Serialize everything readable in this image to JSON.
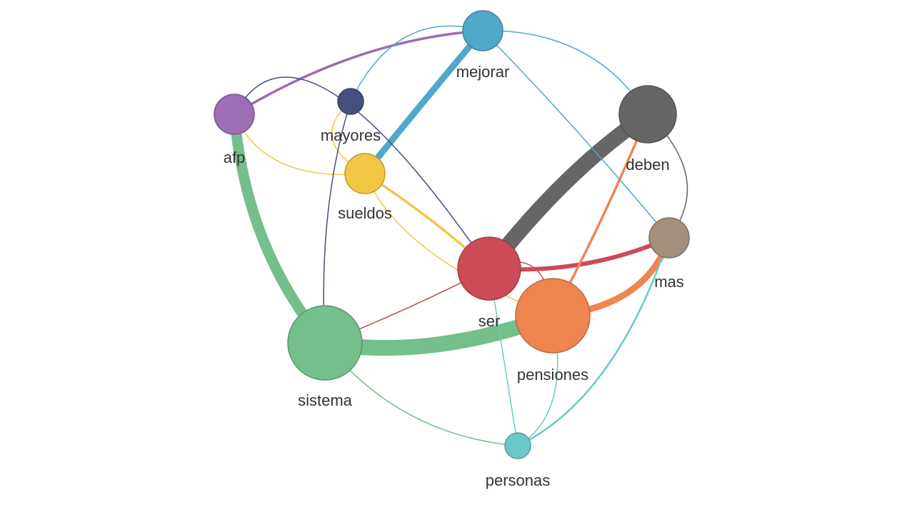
{
  "graph": {
    "nodes": [
      {
        "id": "mejorar",
        "label": "mejorar",
        "color": "#52a8c9",
        "size": 3
      },
      {
        "id": "afp",
        "label": "afp",
        "color": "#9d6db5",
        "size": 3
      },
      {
        "id": "mayores",
        "label": "mayores",
        "color": "#474f7c",
        "size": 2
      },
      {
        "id": "sueldos",
        "label": "sueldos",
        "color": "#f2c744",
        "size": 3
      },
      {
        "id": "deben",
        "label": "deben",
        "color": "#666666",
        "size": 4
      },
      {
        "id": "mas",
        "label": "mas",
        "color": "#a38f7d",
        "size": 3
      },
      {
        "id": "ser",
        "label": "ser",
        "color": "#cc4b57",
        "size": 5
      },
      {
        "id": "pensiones",
        "label": "pensiones",
        "color": "#ef8550",
        "size": 6
      },
      {
        "id": "sistema",
        "label": "sistema",
        "color": "#74bf8b",
        "size": 6
      },
      {
        "id": "personas",
        "label": "personas",
        "color": "#6ac9c8",
        "size": 2
      }
    ],
    "edges": [
      {
        "source": "afp",
        "target": "sistema",
        "weight": 8,
        "color": "#74bf8b"
      },
      {
        "source": "sistema",
        "target": "pensiones",
        "weight": 10,
        "color": "#74bf8b"
      },
      {
        "source": "ser",
        "target": "deben",
        "weight": 12,
        "color": "#666666"
      },
      {
        "source": "sueldos",
        "target": "mejorar",
        "weight": 6,
        "color": "#52a8c9"
      },
      {
        "source": "pensiones",
        "target": "mas",
        "weight": 6,
        "color": "#ef8550"
      },
      {
        "source": "ser",
        "target": "mas",
        "weight": 4,
        "color": "#cc4b57"
      },
      {
        "source": "afp",
        "target": "mejorar",
        "weight": 3,
        "color": "#9d6db5"
      },
      {
        "source": "sueldos",
        "target": "ser",
        "weight": 3,
        "color": "#f2c744"
      },
      {
        "source": "pensiones",
        "target": "deben",
        "weight": 3,
        "color": "#ef8550"
      },
      {
        "source": "mas",
        "target": "personas",
        "weight": 2,
        "color": "#6ac9c8"
      },
      {
        "source": "afp",
        "target": "sueldos",
        "weight": 1,
        "color": "#f2c744"
      },
      {
        "source": "afp",
        "target": "ser",
        "weight": 1,
        "color": "#474f7c"
      },
      {
        "source": "mayores",
        "target": "sueldos",
        "weight": 1,
        "color": "#f2c744"
      },
      {
        "source": "mayores",
        "target": "sistema",
        "weight": 1,
        "color": "#474f7c"
      },
      {
        "source": "mayores",
        "target": "mejorar",
        "weight": 1,
        "color": "#52a8c9"
      },
      {
        "source": "mejorar",
        "target": "deben",
        "weight": 1,
        "color": "#52a8c9"
      },
      {
        "source": "mejorar",
        "target": "mas",
        "weight": 1,
        "color": "#52a8c9"
      },
      {
        "source": "deben",
        "target": "mas",
        "weight": 1,
        "color": "#666666"
      },
      {
        "source": "sueldos",
        "target": "pensiones",
        "weight": 1,
        "color": "#f2c744"
      },
      {
        "source": "ser",
        "target": "sistema",
        "weight": 1,
        "color": "#cc4b57"
      },
      {
        "source": "ser",
        "target": "pensiones",
        "weight": 1,
        "color": "#cc4b57"
      },
      {
        "source": "ser",
        "target": "personas",
        "weight": 1,
        "color": "#6ac9c8"
      },
      {
        "source": "sistema",
        "target": "personas",
        "weight": 1,
        "color": "#74bf8b"
      },
      {
        "source": "pensiones",
        "target": "personas",
        "weight": 1,
        "color": "#6ac9c8"
      }
    ]
  }
}
